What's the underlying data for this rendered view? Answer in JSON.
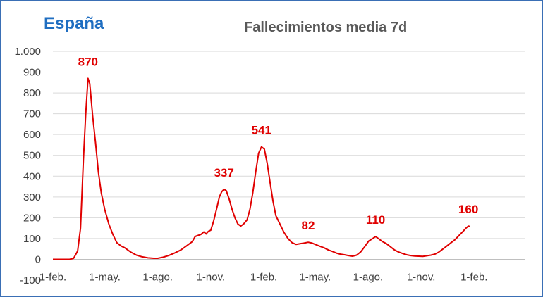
{
  "header": {
    "country": "España",
    "title": "Fallecimientos media 7d"
  },
  "colors": {
    "line": "#e00000",
    "grid": "#d9d9d9",
    "frame": "#3a6fb5",
    "country": "#1f6ec1"
  },
  "chart_data": {
    "type": "line",
    "title": "Fallecimientos media 7d",
    "xlabel": "",
    "ylabel": "",
    "ylim": [
      -100,
      1000
    ],
    "yticks": [
      -100,
      0,
      100,
      200,
      300,
      400,
      500,
      600,
      700,
      800,
      900,
      1000
    ],
    "ytick_labels": [
      "-100",
      "0",
      "100",
      "200",
      "300",
      "400",
      "500",
      "600",
      "700",
      "800",
      "900",
      "1.000"
    ],
    "xticks": [
      {
        "date": "2020-02-01",
        "label": "1-feb."
      },
      {
        "date": "2020-05-01",
        "label": "1-may."
      },
      {
        "date": "2020-08-01",
        "label": "1-ago."
      },
      {
        "date": "2020-11-01",
        "label": "1-nov."
      },
      {
        "date": "2021-02-01",
        "label": "1-feb."
      },
      {
        "date": "2021-05-01",
        "label": "1-may."
      },
      {
        "date": "2021-08-01",
        "label": "1-ago."
      },
      {
        "date": "2021-11-01",
        "label": "1-nov."
      },
      {
        "date": "2022-02-01",
        "label": "1-feb."
      }
    ],
    "xlim": [
      "2020-02-01",
      "2022-05-01"
    ],
    "grid": true,
    "series": [
      {
        "points": [
          [
            "2020-02-01",
            0
          ],
          [
            "2020-03-01",
            0
          ],
          [
            "2020-03-08",
            5
          ],
          [
            "2020-03-15",
            40
          ],
          [
            "2020-03-20",
            150
          ],
          [
            "2020-03-25",
            480
          ],
          [
            "2020-03-29",
            700
          ],
          [
            "2020-04-02",
            870
          ],
          [
            "2020-04-05",
            845
          ],
          [
            "2020-04-10",
            690
          ],
          [
            "2020-04-15",
            560
          ],
          [
            "2020-04-20",
            420
          ],
          [
            "2020-04-25",
            320
          ],
          [
            "2020-05-01",
            240
          ],
          [
            "2020-05-08",
            170
          ],
          [
            "2020-05-15",
            120
          ],
          [
            "2020-05-22",
            80
          ],
          [
            "2020-05-29",
            65
          ],
          [
            "2020-06-05",
            55
          ],
          [
            "2020-06-15",
            35
          ],
          [
            "2020-06-25",
            20
          ],
          [
            "2020-07-05",
            12
          ],
          [
            "2020-07-15",
            7
          ],
          [
            "2020-07-25",
            5
          ],
          [
            "2020-08-01",
            5
          ],
          [
            "2020-08-10",
            10
          ],
          [
            "2020-08-20",
            18
          ],
          [
            "2020-08-30",
            30
          ],
          [
            "2020-09-10",
            45
          ],
          [
            "2020-09-20",
            65
          ],
          [
            "2020-09-30",
            85
          ],
          [
            "2020-10-05",
            110
          ],
          [
            "2020-10-10",
            115
          ],
          [
            "2020-10-15",
            120
          ],
          [
            "2020-10-20",
            132
          ],
          [
            "2020-10-24",
            122
          ],
          [
            "2020-10-28",
            135
          ],
          [
            "2020-11-01",
            140
          ],
          [
            "2020-11-06",
            185
          ],
          [
            "2020-11-11",
            240
          ],
          [
            "2020-11-16",
            300
          ],
          [
            "2020-11-20",
            325
          ],
          [
            "2020-11-24",
            337
          ],
          [
            "2020-11-28",
            330
          ],
          [
            "2020-12-03",
            290
          ],
          [
            "2020-12-08",
            240
          ],
          [
            "2020-12-13",
            200
          ],
          [
            "2020-12-18",
            170
          ],
          [
            "2020-12-23",
            160
          ],
          [
            "2020-12-28",
            170
          ],
          [
            "2021-01-03",
            190
          ],
          [
            "2021-01-08",
            240
          ],
          [
            "2021-01-13",
            320
          ],
          [
            "2021-01-18",
            420
          ],
          [
            "2021-01-23",
            510
          ],
          [
            "2021-01-28",
            541
          ],
          [
            "2021-02-02",
            530
          ],
          [
            "2021-02-07",
            460
          ],
          [
            "2021-02-12",
            370
          ],
          [
            "2021-02-17",
            280
          ],
          [
            "2021-02-22",
            210
          ],
          [
            "2021-03-01",
            170
          ],
          [
            "2021-03-08",
            130
          ],
          [
            "2021-03-15",
            100
          ],
          [
            "2021-03-22",
            80
          ],
          [
            "2021-03-29",
            72
          ],
          [
            "2021-04-05",
            75
          ],
          [
            "2021-04-12",
            78
          ],
          [
            "2021-04-19",
            82
          ],
          [
            "2021-04-26",
            78
          ],
          [
            "2021-05-03",
            70
          ],
          [
            "2021-05-10",
            62
          ],
          [
            "2021-05-17",
            55
          ],
          [
            "2021-05-24",
            45
          ],
          [
            "2021-05-31",
            38
          ],
          [
            "2021-06-07",
            30
          ],
          [
            "2021-06-14",
            25
          ],
          [
            "2021-06-21",
            22
          ],
          [
            "2021-06-28",
            18
          ],
          [
            "2021-07-05",
            15
          ],
          [
            "2021-07-12",
            20
          ],
          [
            "2021-07-19",
            35
          ],
          [
            "2021-07-26",
            60
          ],
          [
            "2021-08-02",
            88
          ],
          [
            "2021-08-09",
            100
          ],
          [
            "2021-08-14",
            110
          ],
          [
            "2021-08-19",
            100
          ],
          [
            "2021-08-26",
            85
          ],
          [
            "2021-09-02",
            75
          ],
          [
            "2021-09-09",
            60
          ],
          [
            "2021-09-16",
            45
          ],
          [
            "2021-09-23",
            35
          ],
          [
            "2021-09-30",
            28
          ],
          [
            "2021-10-07",
            22
          ],
          [
            "2021-10-14",
            18
          ],
          [
            "2021-10-21",
            16
          ],
          [
            "2021-10-28",
            15
          ],
          [
            "2021-11-04",
            14
          ],
          [
            "2021-11-11",
            17
          ],
          [
            "2021-11-18",
            20
          ],
          [
            "2021-11-25",
            25
          ],
          [
            "2021-12-02",
            35
          ],
          [
            "2021-12-09",
            50
          ],
          [
            "2021-12-16",
            65
          ],
          [
            "2021-12-23",
            80
          ],
          [
            "2021-12-30",
            95
          ],
          [
            "2022-01-06",
            115
          ],
          [
            "2022-01-13",
            135
          ],
          [
            "2022-01-18",
            150
          ],
          [
            "2022-01-22",
            160
          ],
          [
            "2022-01-25",
            158
          ]
        ]
      }
    ],
    "annotations": [
      {
        "label": "870",
        "date": "2020-04-02",
        "value": 870
      },
      {
        "label": "337",
        "date": "2020-11-24",
        "value": 337
      },
      {
        "label": "541",
        "date": "2021-01-28",
        "value": 541
      },
      {
        "label": "82",
        "date": "2021-04-19",
        "value": 82
      },
      {
        "label": "110",
        "date": "2021-08-14",
        "value": 110
      },
      {
        "label": "160",
        "date": "2022-01-22",
        "value": 160
      }
    ]
  }
}
